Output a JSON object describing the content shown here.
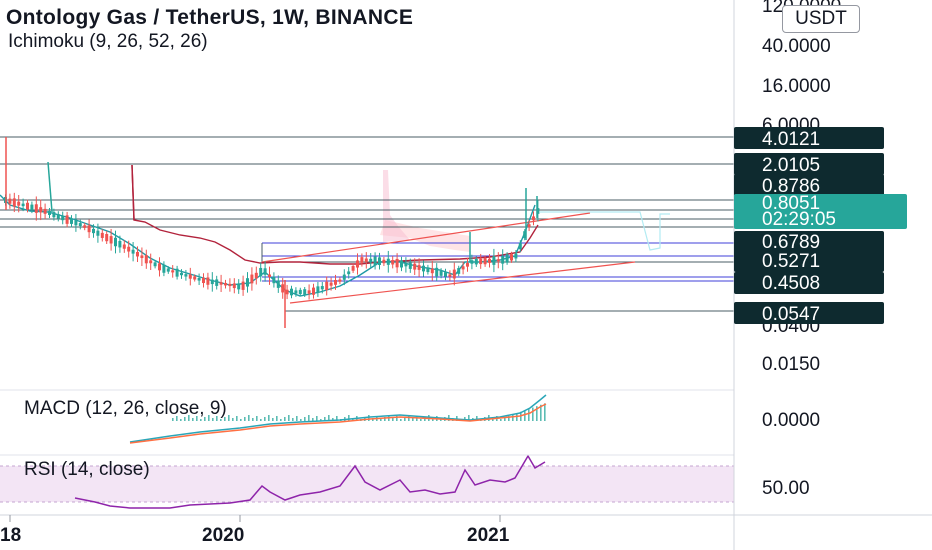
{
  "header": {
    "title": "Ontology Gas / TetherUS, 1W, BINANCE",
    "indicator": "Ichimoku (9, 26, 52, 26)",
    "currency_button": "USDT"
  },
  "panes": {
    "macd_label": "MACD (12, 26, close, 9)",
    "rsi_label": "RSI (14, close)"
  },
  "colors": {
    "up": "#26a69a",
    "down": "#ef5350",
    "base_line": "#b2233c",
    "conversion": "#1f9aa5",
    "channel": "#ef5350",
    "level_line": "#4a5c66",
    "range_line": "#3f3fd8",
    "price_tag": "#26a69a",
    "dark_tag": "#0e2a2f",
    "rsi_line": "#8e24aa",
    "rsi_band": "#f3e5f5",
    "macd_line": "#2aa6b8",
    "signal_line": "#ff7043",
    "hist": "#26a69a"
  },
  "chart_data": {
    "type": "candlestick",
    "symbol": "Ontology Gas / TetherUS",
    "interval": "1W",
    "exchange": "BINANCE",
    "y_scale": "log",
    "price_axis": {
      "ticks": [
        "120.0000",
        "40.0000",
        "16.0000",
        "6.0000",
        "0.0400",
        "0.0150"
      ],
      "labels": [
        {
          "text": "4.0121",
          "style": "dark"
        },
        {
          "text": "2.0105",
          "style": "dark"
        },
        {
          "text": "0.8786",
          "style": "dark"
        },
        {
          "text": "0.8051",
          "sub": "02:29:05",
          "style": "current"
        },
        {
          "text": "0.6789",
          "style": "dark"
        },
        {
          "text": "0.5271",
          "style": "dark"
        },
        {
          "text": "0.4508",
          "style": "dark"
        },
        {
          "text": "0.0547",
          "style": "dark"
        }
      ]
    },
    "time_axis": [
      "18",
      "2020",
      "2021"
    ],
    "macd": {
      "name": "MACD (12, 26, close, 9)",
      "axis_tick": "0.0000"
    },
    "rsi": {
      "name": "RSI (14, close)",
      "axis_tick": "50.00"
    }
  }
}
